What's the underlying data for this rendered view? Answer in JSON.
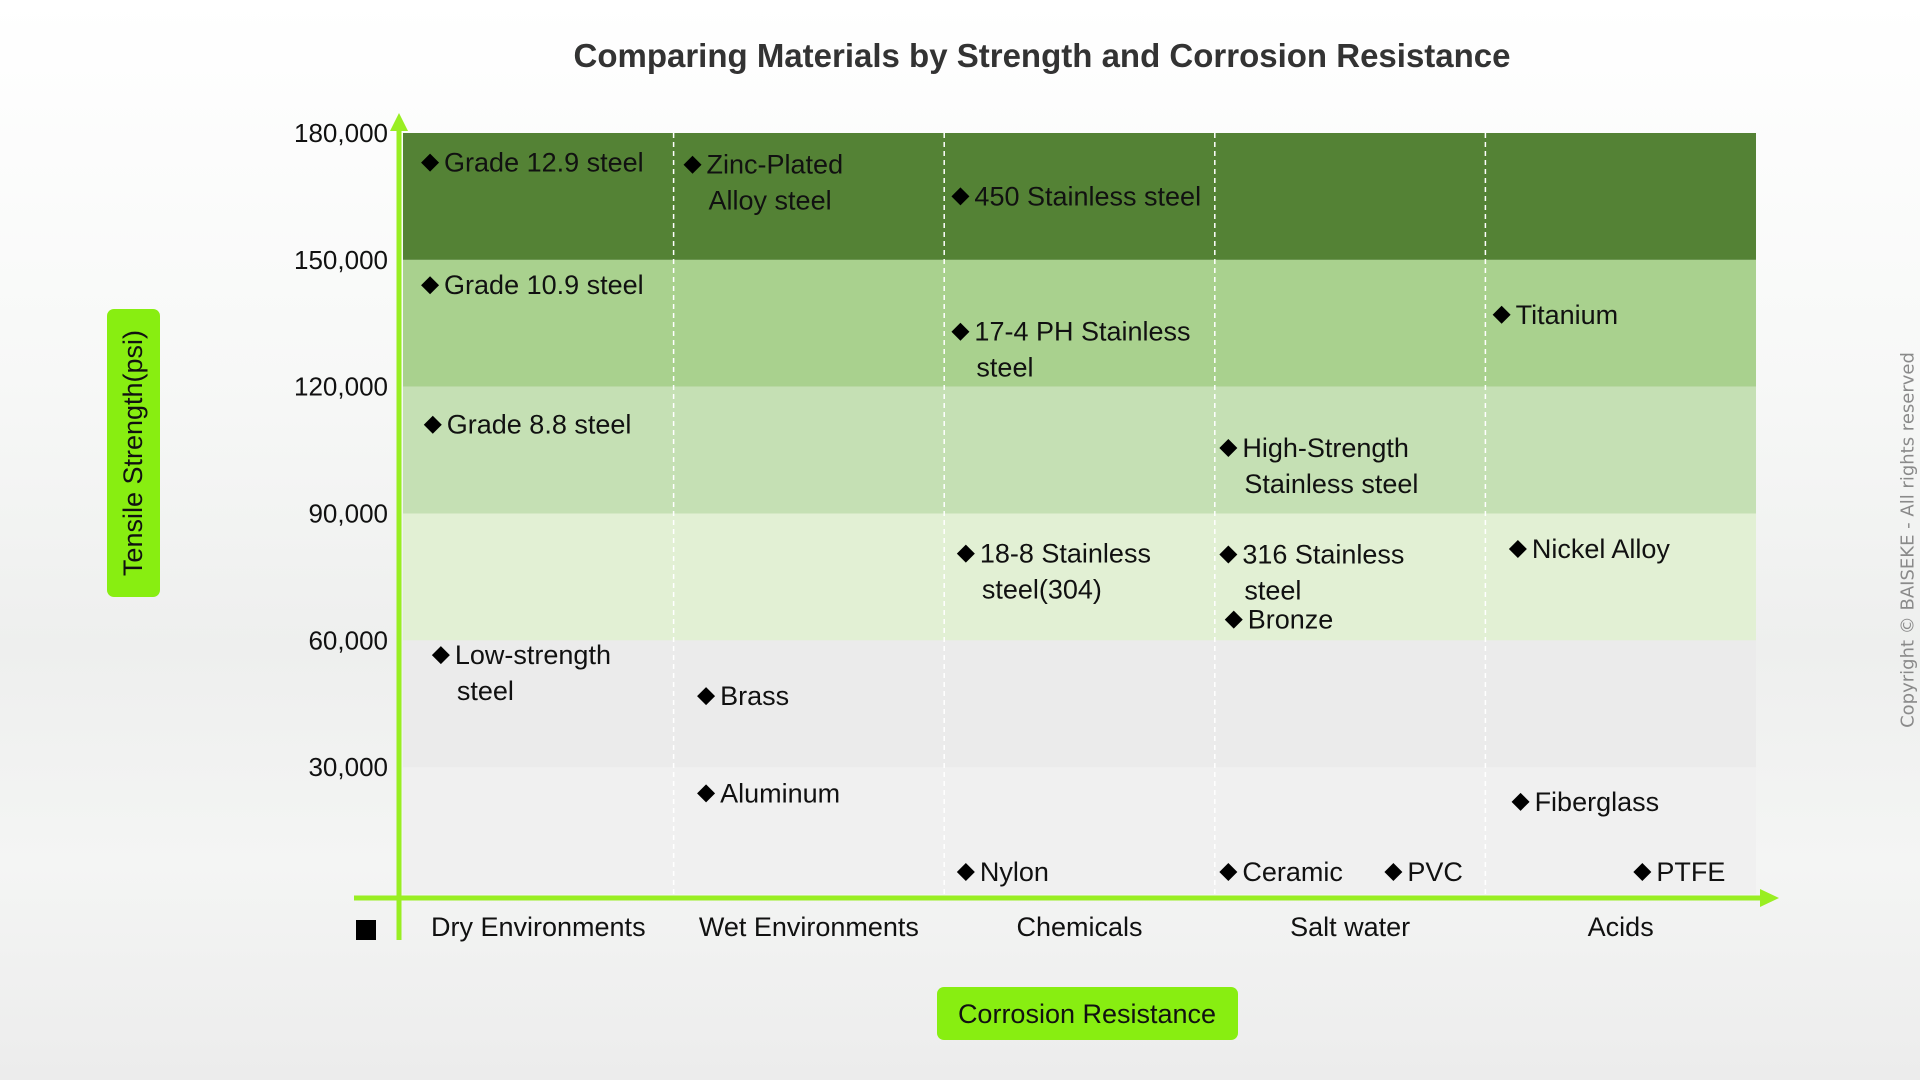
{
  "chart_data": {
    "type": "scatter",
    "title": "Comparing Materials by Strength and Corrosion Resistance",
    "xlabel": "Corrosion Resistance",
    "ylabel": "Tensile Strength(psi)",
    "categories": [
      "Dry Environments",
      "Wet Environments",
      "Chemicals",
      "Salt water",
      "Acids"
    ],
    "y_ticks": [
      30000,
      60000,
      90000,
      120000,
      150000,
      180000
    ],
    "y_tick_labels": [
      "30,000",
      "60,000",
      "90,000",
      "120,000",
      "150,000",
      "180,000"
    ],
    "ylim": [
      0,
      180000
    ],
    "bands": [
      {
        "from": 0,
        "to": 30000,
        "color": "#f0f0f0"
      },
      {
        "from": 30000,
        "to": 60000,
        "color": "#ebebeb"
      },
      {
        "from": 60000,
        "to": 90000,
        "color": "#e2f0d4"
      },
      {
        "from": 90000,
        "to": 120000,
        "color": "#c5e0b4"
      },
      {
        "from": 120000,
        "to": 150000,
        "color": "#a9d18e"
      },
      {
        "from": 150000,
        "to": 180000,
        "color": "#548235"
      }
    ],
    "points": [
      {
        "category": "Dry Environments",
        "x": 0.1,
        "y": 173000,
        "lines": [
          "Grade 12.9 steel"
        ]
      },
      {
        "category": "Dry Environments",
        "x": 0.1,
        "y": 144000,
        "lines": [
          "Grade 10.9 steel"
        ]
      },
      {
        "category": "Dry Environments",
        "x": 0.11,
        "y": 111000,
        "lines": [
          "Grade 8.8 steel"
        ]
      },
      {
        "category": "Dry Environments",
        "x": 0.14,
        "y": 56500,
        "lines": [
          "Low-strength",
          "steel"
        ]
      },
      {
        "category": "Wet Environments",
        "x": 0.07,
        "y": 172500,
        "lines": [
          "Zinc-Plated",
          "Alloy steel"
        ]
      },
      {
        "category": "Wet Environments",
        "x": 0.12,
        "y": 46800,
        "lines": [
          "Brass"
        ]
      },
      {
        "category": "Wet Environments",
        "x": 0.12,
        "y": 23800,
        "lines": [
          "Aluminum"
        ]
      },
      {
        "category": "Chemicals",
        "x": 0.06,
        "y": 165000,
        "lines": [
          "450 Stainless steel"
        ]
      },
      {
        "category": "Chemicals",
        "x": 0.06,
        "y": 133000,
        "lines": [
          "17-4 PH Stainless",
          "steel"
        ]
      },
      {
        "category": "Chemicals",
        "x": 0.08,
        "y": 80500,
        "lines": [
          "18-8 Stainless",
          "steel(304)"
        ]
      },
      {
        "category": "Chemicals",
        "x": 0.08,
        "y": 5200,
        "lines": [
          "Nylon"
        ]
      },
      {
        "category": "Salt water",
        "x": 0.05,
        "y": 105500,
        "lines": [
          "High-Strength",
          "Stainless steel"
        ]
      },
      {
        "category": "Salt water",
        "x": 0.05,
        "y": 80300,
        "lines": [
          "316 Stainless",
          "steel"
        ]
      },
      {
        "category": "Salt water",
        "x": 0.07,
        "y": 64900,
        "lines": [
          "Bronze"
        ]
      },
      {
        "category": "Salt water",
        "x": 0.05,
        "y": 5200,
        "lines": [
          "Ceramic"
        ]
      },
      {
        "category": "Salt water",
        "x": 0.66,
        "y": 5200,
        "lines": [
          "PVC"
        ]
      },
      {
        "category": "Acids",
        "x": 0.06,
        "y": 137000,
        "lines": [
          "Titanium"
        ]
      },
      {
        "category": "Acids",
        "x": 0.12,
        "y": 81600,
        "lines": [
          "Nickel Alloy"
        ]
      },
      {
        "category": "Acids",
        "x": 0.13,
        "y": 21800,
        "lines": [
          "Fiberglass"
        ]
      },
      {
        "category": "Acids",
        "x": 0.58,
        "y": 5200,
        "lines": [
          "PTFE"
        ]
      }
    ],
    "colors": {
      "axis": "#99ee22",
      "badge": "#88ee11",
      "marker": "#000000",
      "text": "#111111",
      "title": "#333333"
    }
  },
  "copyright": "Copyright © BAISEKE - All rights reserved"
}
